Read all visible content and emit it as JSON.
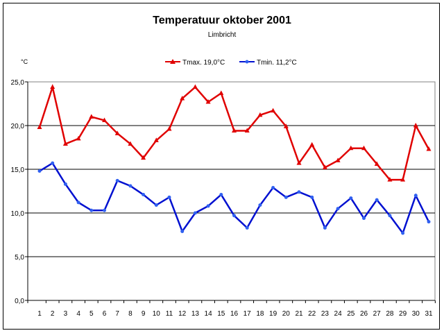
{
  "chart_data": {
    "type": "line",
    "title": "Temperatuur oktober 2001",
    "subtitle": "Limbricht",
    "ylabel": "°C",
    "xlabel": "",
    "ylim": [
      0,
      25
    ],
    "yticks": [
      "0,0",
      "5,0",
      "10,0",
      "15,0",
      "20,0",
      "25,0"
    ],
    "x": [
      1,
      2,
      3,
      4,
      5,
      6,
      7,
      8,
      9,
      10,
      11,
      12,
      13,
      14,
      15,
      16,
      17,
      18,
      19,
      20,
      21,
      22,
      23,
      24,
      25,
      26,
      27,
      28,
      29,
      30,
      31
    ],
    "grid": true,
    "legend_position": "top",
    "series": [
      {
        "name": "Tmax. 19,0°C",
        "color": "#e00000",
        "marker": "triangle",
        "values": [
          19.8,
          24.4,
          17.9,
          18.5,
          21.0,
          20.6,
          19.1,
          17.9,
          16.3,
          18.3,
          19.6,
          23.1,
          24.4,
          22.7,
          23.7,
          19.4,
          19.4,
          21.2,
          21.7,
          19.9,
          15.7,
          17.8,
          15.2,
          16.0,
          17.4,
          17.4,
          15.6,
          13.8,
          13.8,
          20.0,
          17.3
        ]
      },
      {
        "name": "Tmin. 11,2°C",
        "color": "#0010d0",
        "marker": "circle",
        "values": [
          14.8,
          15.7,
          13.3,
          11.2,
          10.3,
          10.3,
          13.7,
          13.1,
          12.1,
          10.9,
          11.8,
          7.9,
          10.0,
          10.8,
          12.1,
          9.7,
          8.3,
          10.9,
          12.9,
          11.8,
          12.4,
          11.8,
          8.3,
          10.5,
          11.7,
          9.4,
          11.5,
          9.7,
          7.7,
          12.0,
          9.0
        ]
      }
    ]
  }
}
